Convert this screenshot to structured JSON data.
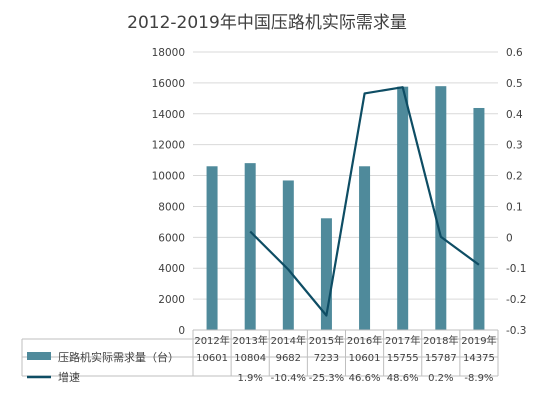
{
  "chart_data": {
    "type": "bar",
    "title": "2012-2019年中国压路机实际需求量",
    "categories": [
      "2012年",
      "2013年",
      "2014年",
      "2015年",
      "2016年",
      "2017年",
      "2018年",
      "2019年"
    ],
    "series": [
      {
        "name": "压路机实际需求量（台）",
        "type": "bar",
        "axis": "left",
        "color": "#4f8a9b",
        "values": [
          10601,
          10804,
          9682,
          7233,
          10601,
          15755,
          15787,
          14375
        ],
        "labels": [
          "10601",
          "10804",
          "9682",
          "7233",
          "10601",
          "15755",
          "15787",
          "14375"
        ]
      },
      {
        "name": "增速",
        "type": "line",
        "axis": "right",
        "color": "#0e4d64",
        "values": [
          null,
          0.019,
          -0.104,
          -0.253,
          0.466,
          0.486,
          0.002,
          -0.089
        ],
        "labels": [
          "",
          "1.9%",
          "-10.4%",
          "-25.3%",
          "46.6%",
          "48.6%",
          "0.2%",
          "-8.9%"
        ]
      }
    ],
    "y_left": {
      "range": [
        0,
        18000
      ],
      "ticks": [
        "0",
        "2000",
        "4000",
        "6000",
        "8000",
        "10000",
        "12000",
        "14000",
        "16000",
        "18000"
      ]
    },
    "y_right": {
      "range": [
        -0.3,
        0.6
      ],
      "ticks": [
        "-0.3",
        "-0.2",
        "-0.1",
        "0",
        "0.1",
        "0.2",
        "0.3",
        "0.4",
        "0.5",
        "0.6"
      ]
    },
    "grid": true,
    "legend": "data-table"
  }
}
